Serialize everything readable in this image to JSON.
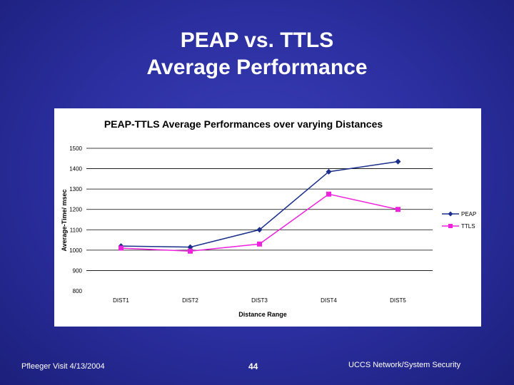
{
  "slide": {
    "title_line1": "PEAP vs. TTLS",
    "title_line2": "Average Performance"
  },
  "footer": {
    "left": "Pfleeger Visit 4/13/2004",
    "page_number": "44",
    "right": "UCCS Network/System Security"
  },
  "colors": {
    "background": "#2a2e9e",
    "peap": "#1a2f8c",
    "ttls": "#ee22dd"
  },
  "chart_data": {
    "type": "line",
    "title": "PEAP-TTLS Average Performances over varying Distances",
    "xlabel": "Distance Range",
    "ylabel": "Average-Time/ msec",
    "categories": [
      "DIST1",
      "DIST2",
      "DIST3",
      "DIST4",
      "DIST5"
    ],
    "ylim": [
      800,
      1500
    ],
    "yticks": [
      800,
      900,
      1000,
      1100,
      1200,
      1300,
      1400,
      1500
    ],
    "legend_position": "right",
    "series": [
      {
        "name": "PEAP",
        "values": [
          1020,
          1015,
          1100,
          1385,
          1435
        ],
        "marker": "diamond"
      },
      {
        "name": "TTLS",
        "values": [
          1010,
          995,
          1030,
          1275,
          1200
        ],
        "marker": "square"
      }
    ]
  }
}
